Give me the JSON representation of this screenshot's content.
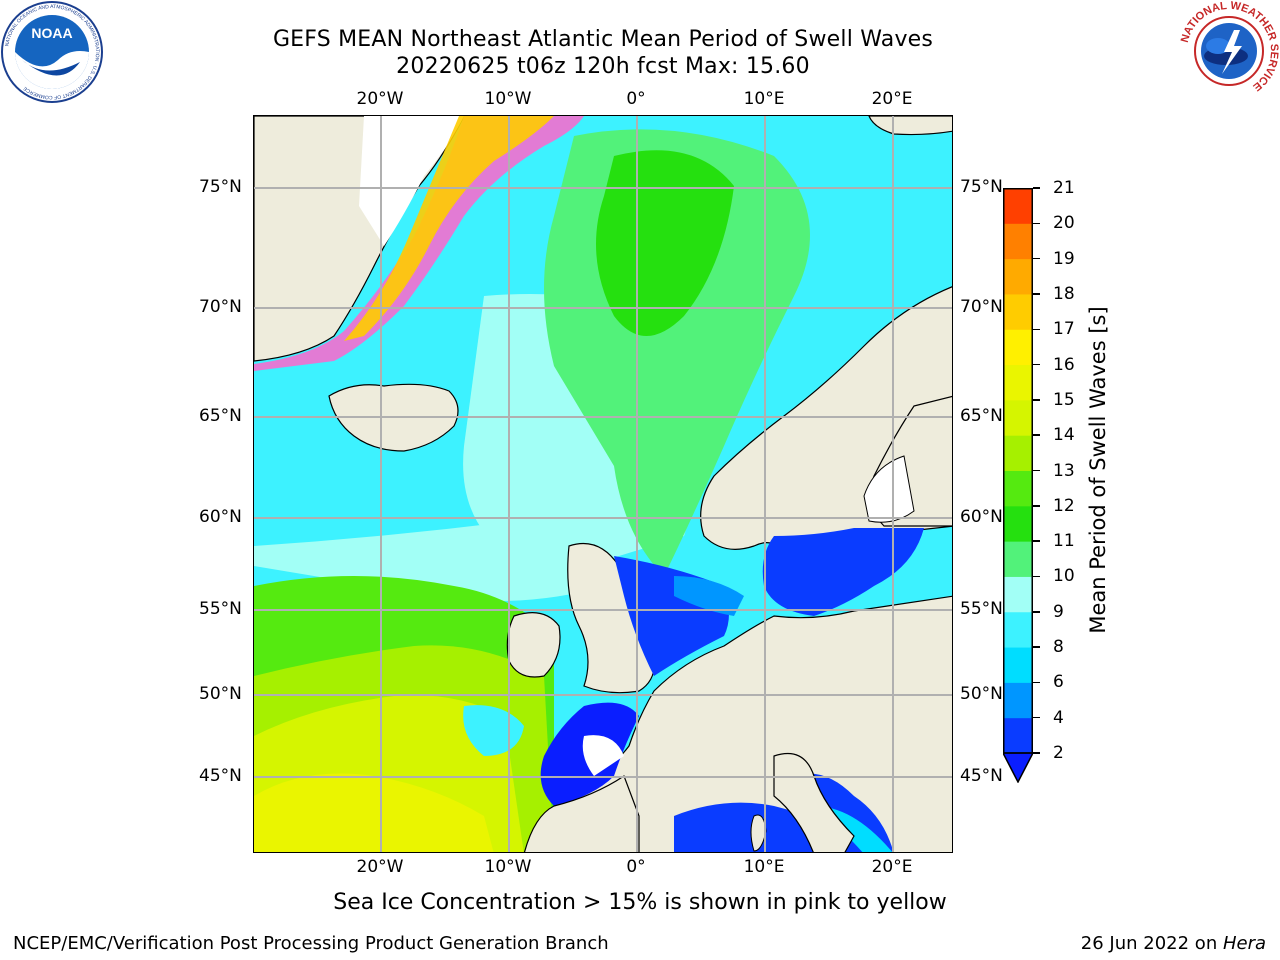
{
  "title": {
    "line1": "GEFS MEAN Northeast Atlantic Mean Period of Swell Waves",
    "line2": "20220625 t06z 120h fcst   Max: 15.60"
  },
  "logos": {
    "left": {
      "name": "noaa-logo",
      "text": "NOAA",
      "ring_text": "NATIONAL OCEANIC AND ATMOSPHERIC ADMINISTRATION · U.S. DEPARTMENT OF COMMERCE"
    },
    "right": {
      "name": "nws-logo",
      "ring_text": "NATIONAL WEATHER SERVICE"
    }
  },
  "map": {
    "projection": "lat-lon",
    "lon_ticks": [
      "20°W",
      "10°W",
      "0°",
      "10°E",
      "20°E"
    ],
    "lat_ticks": [
      "75°N",
      "70°N",
      "65°N",
      "60°N",
      "55°N",
      "50°N",
      "45°N"
    ],
    "regions": {
      "south_atlantic": "yellow-green (11–15 s)",
      "north_atlantic": "cyan (5–8 s)",
      "norwegian_sea": "green (9–11 s)",
      "north_sea_baltic_biscay_med": "blue (2–4 s)",
      "sea_ice_edge": "pink to yellow"
    },
    "colors": {
      "land": "#eeecdc",
      "ice_land": "#ffffff"
    }
  },
  "colorbar": {
    "title": "Mean Period of Swell Waves [s]",
    "labels": [
      "2",
      "4",
      "6",
      "8",
      "9",
      "10",
      "11",
      "12",
      "13",
      "14",
      "15",
      "16",
      "17",
      "18",
      "19",
      "20",
      "21"
    ],
    "colors": [
      "#0a3cff",
      "#0096ff",
      "#00ddff",
      "#3df2ff",
      "#a2fff6",
      "#52f27a",
      "#25e00f",
      "#55ea10",
      "#a6f000",
      "#d5f500",
      "#eaf500",
      "#fff000",
      "#ffcc00",
      "#ffaa00",
      "#ff8000",
      "#ff4000",
      "#ff0000"
    ],
    "under_color": "#0a1eff"
  },
  "footer": {
    "ice_note": "Sea Ice Concentration > 15% is shown in pink to yellow",
    "credit": "NCEP/EMC/Verification Post Processing Product Generation Branch",
    "date": "26 Jun 2022 on ",
    "machine": "Hera"
  }
}
